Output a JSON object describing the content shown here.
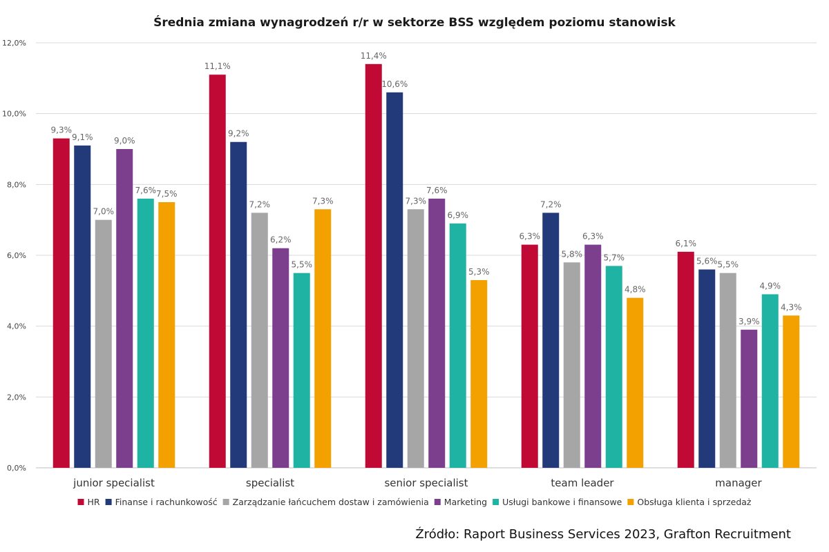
{
  "chart_data": {
    "type": "bar",
    "title": "Średnia zmiana wynagrodzeń r/r w sektorze BSS względem poziomu stanowisk",
    "categories": [
      "junior specialist",
      "specialist",
      "senior specialist",
      "team leader",
      "manager"
    ],
    "series": [
      {
        "name": "HR",
        "color": "#c00a35",
        "values": [
          9.3,
          11.1,
          11.4,
          6.3,
          6.1
        ]
      },
      {
        "name": "Finanse i rachunkowość",
        "color": "#233a7a",
        "values": [
          9.1,
          9.2,
          10.6,
          7.2,
          5.6
        ]
      },
      {
        "name": "Zarządzanie łańcuchem dostaw i zamówienia",
        "color": "#a6a6a6",
        "values": [
          7.0,
          7.2,
          7.3,
          5.8,
          5.5
        ]
      },
      {
        "name": "Marketing",
        "color": "#7b3f8e",
        "values": [
          9.0,
          6.2,
          7.6,
          6.3,
          3.9
        ]
      },
      {
        "name": "Usługi bankowe i finansowe",
        "color": "#1fb3a3",
        "values": [
          7.6,
          5.5,
          6.9,
          5.7,
          4.9
        ]
      },
      {
        "name": "Obsługa klienta i sprzedaż",
        "color": "#f2a100",
        "values": [
          7.5,
          7.3,
          5.3,
          4.8,
          4.3
        ]
      }
    ],
    "data_labels": [
      [
        "9,3%",
        "11,1%",
        "11,4%",
        "6,3%",
        "6,1%"
      ],
      [
        "9,1%",
        "9,2%",
        "10,6%",
        "7,2%",
        "5,6%"
      ],
      [
        "7,0%",
        "7,2%",
        "7,3%",
        "5,8%",
        "5,5%"
      ],
      [
        "9,0%",
        "6,2%",
        "7,6%",
        "6,3%",
        "3,9%"
      ],
      [
        "7,6%",
        "5,5%",
        "6,9%",
        "5,7%",
        "4,9%"
      ],
      [
        "7,5%",
        "7,3%",
        "5,3%",
        "4,8%",
        "4,3%"
      ]
    ],
    "ylim": [
      0,
      12
    ],
    "yticks": [
      0,
      2,
      4,
      6,
      8,
      10,
      12
    ],
    "ytick_labels": [
      "0,0%",
      "2,0%",
      "4,0%",
      "6,0%",
      "8,0%",
      "10,0%",
      "12,0%"
    ],
    "xlabel": "",
    "ylabel": "",
    "grid": true,
    "legend_position": "bottom"
  },
  "source": "Źródło: Raport Business Services 2023, Grafton Recruitment"
}
